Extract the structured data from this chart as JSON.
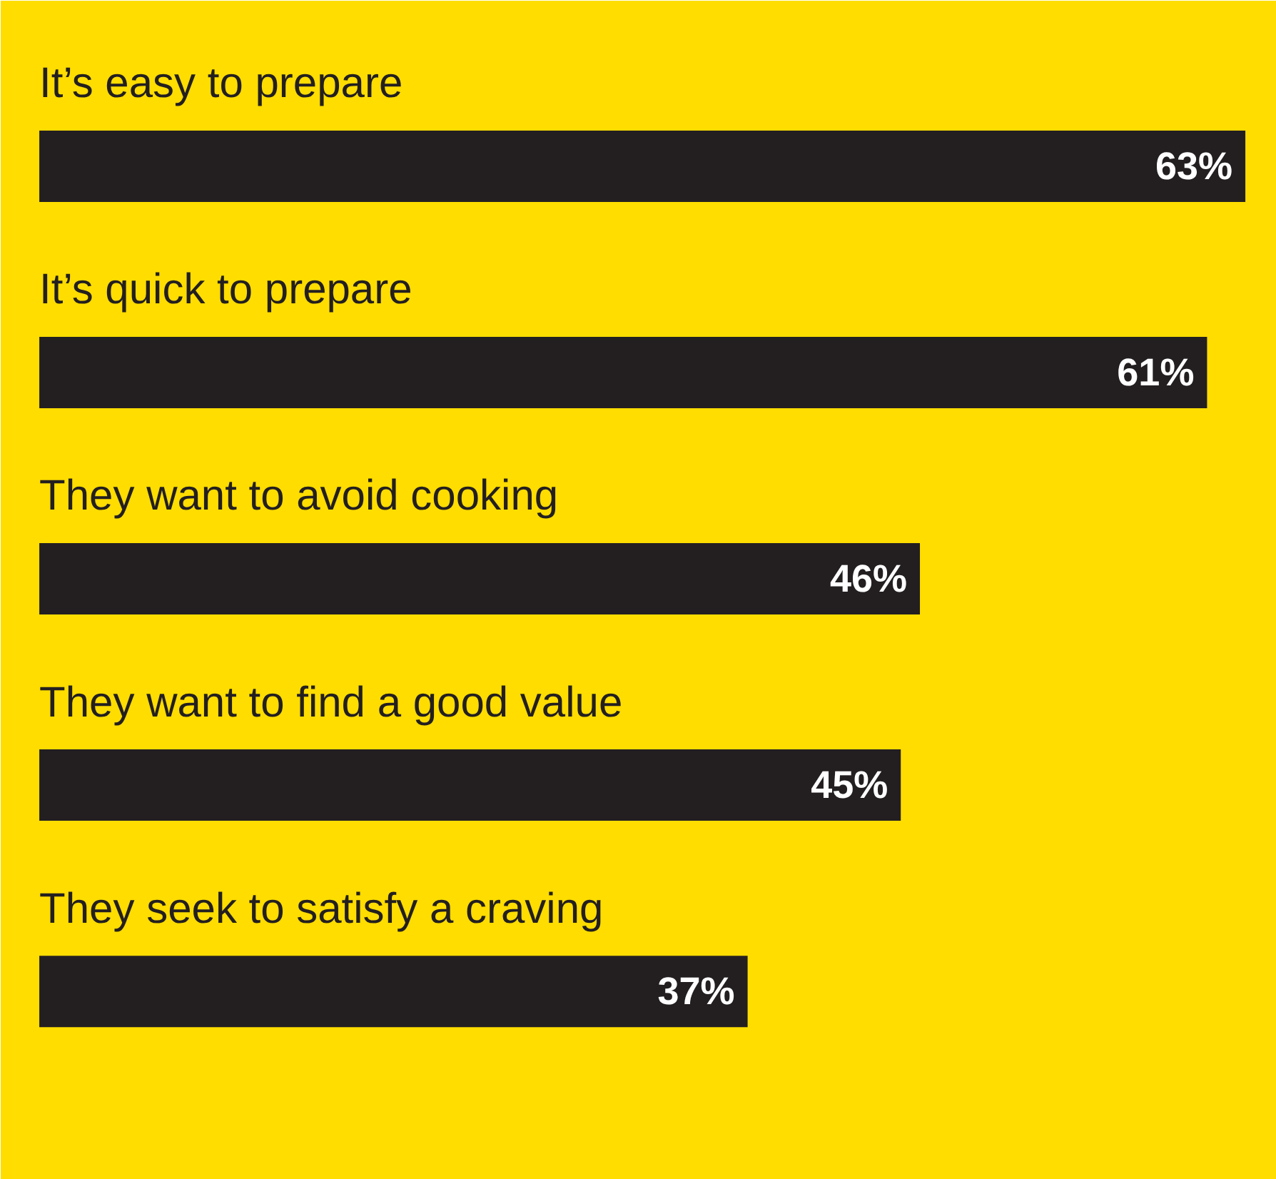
{
  "chart_data": {
    "type": "bar",
    "orientation": "horizontal",
    "categories": [
      "It’s easy to prepare",
      "It’s quick to prepare",
      "They want to avoid cooking",
      "They want to find a good value",
      "They seek to satisfy a craving"
    ],
    "values": [
      63,
      61,
      46,
      45,
      37
    ],
    "value_labels": [
      "63%",
      "61%",
      "46%",
      "45%",
      "37%"
    ],
    "color": "#231f20",
    "tick_labels": "y"
  }
}
